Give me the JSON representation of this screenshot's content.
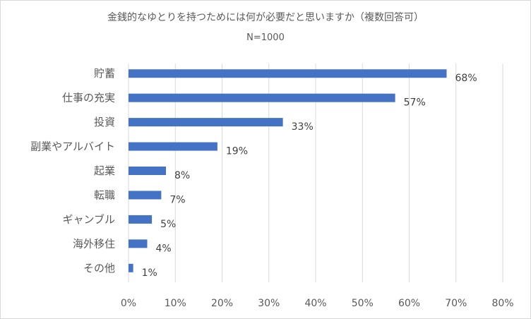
{
  "chart_data": {
    "type": "bar",
    "orientation": "horizontal",
    "title": "金銭的なゆとりを持つためには何が必要だと思いますか（複数回答可）",
    "subtitle": "N=1000",
    "categories": [
      "貯蓄",
      "仕事の充実",
      "投資",
      "副業やアルバイト",
      "起業",
      "転職",
      "ギャンブル",
      "海外移住",
      "その他"
    ],
    "values": [
      68,
      57,
      33,
      19,
      8,
      7,
      5,
      4,
      1
    ],
    "data_labels": [
      "68%",
      "57%",
      "33%",
      "19%",
      "8%",
      "7%",
      "5%",
      "4%",
      "1%"
    ],
    "xlim": [
      0,
      80
    ],
    "xticks": [
      0,
      10,
      20,
      30,
      40,
      50,
      60,
      70,
      80
    ],
    "xtick_labels": [
      "0%",
      "10%",
      "20%",
      "30%",
      "40%",
      "50%",
      "60%",
      "70%",
      "80%"
    ],
    "grid": "vertical",
    "legend": "none",
    "bar_color": "#4472c4",
    "grid_color": "#d9d9d9"
  }
}
